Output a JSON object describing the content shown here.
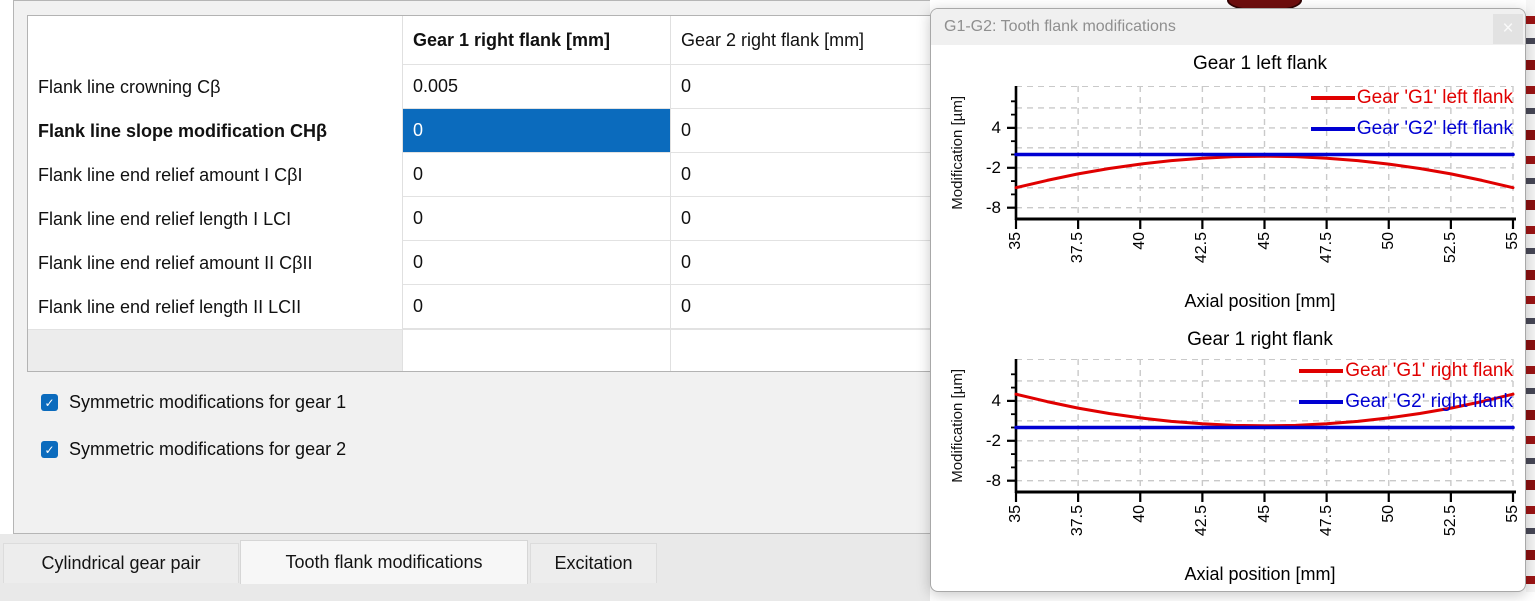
{
  "colors": {
    "accent": "#0b6bbd",
    "series_red": "#e00000",
    "series_blue": "#0000d2",
    "selected_text": "#ffffff"
  },
  "table": {
    "columns": [
      {
        "label": "",
        "bold": false
      },
      {
        "label": "Gear 1 right flank [mm]",
        "bold": true
      },
      {
        "label": "Gear 2 right flank [mm]",
        "bold": false
      }
    ],
    "rows": [
      {
        "label": "Flank line crowning Cβ",
        "bold": false,
        "values": [
          "0.005",
          "0"
        ]
      },
      {
        "label": "Flank line slope modification CHβ",
        "bold": true,
        "values": [
          "0",
          "0"
        ],
        "selected_value": 0
      },
      {
        "label": "Flank line end relief amount I CβI",
        "bold": false,
        "values": [
          "0",
          "0"
        ]
      },
      {
        "label": "Flank line end relief length I LCI",
        "bold": false,
        "values": [
          "0",
          "0"
        ]
      },
      {
        "label": "Flank line end relief amount II CβII",
        "bold": false,
        "values": [
          "0",
          "0"
        ]
      },
      {
        "label": "Flank line end relief length II LCII",
        "bold": false,
        "values": [
          "0",
          "0"
        ]
      }
    ]
  },
  "checkboxes": {
    "check_glyph": "✓",
    "items": [
      {
        "label": "Symmetric modifications for gear 1",
        "checked": true
      },
      {
        "label": "Symmetric modifications for gear 2",
        "checked": true
      }
    ]
  },
  "tabs": [
    {
      "label": "Cylindrical gear pair",
      "active": false
    },
    {
      "label": "Tooth flank modifications",
      "active": true
    },
    {
      "label": "Excitation",
      "active": false
    }
  ],
  "floating_window": {
    "title": "G1-G2: Tooth flank modifications",
    "close_glyph": "×"
  },
  "chart_data": [
    {
      "type": "line",
      "title": "Gear 1 left flank",
      "xlabel": "Axial position [mm]",
      "ylabel": "Modification [µm]",
      "xlim": [
        35,
        55
      ],
      "ylim": [
        -9.7,
        10.3
      ],
      "x_ticks": [
        35,
        37.5,
        40,
        42.5,
        45,
        47.5,
        50,
        52.5,
        55
      ],
      "y_major_ticks": [
        4,
        -2,
        -8
      ],
      "y_minor_ticks": [
        8,
        6,
        2,
        0,
        -4,
        -6
      ],
      "grid_values": [
        7,
        4,
        1,
        -2,
        -5,
        -8
      ],
      "grid": true,
      "legend_position": "top-right",
      "x": [
        35,
        36.25,
        37.5,
        38.75,
        40,
        41.25,
        42.5,
        43.75,
        45,
        46.25,
        47.5,
        48.75,
        50,
        51.25,
        52.5,
        53.75,
        55
      ],
      "series": [
        {
          "name": "Gear 'G1' left flank",
          "color": "#e00000",
          "width": 3,
          "values": [
            -5,
            -3.89,
            -2.92,
            -2.11,
            -1.44,
            -0.92,
            -0.55,
            -0.32,
            -0.25,
            -0.32,
            -0.55,
            -0.92,
            -1.44,
            -2.11,
            -2.92,
            -3.89,
            -5
          ]
        },
        {
          "name": "Gear 'G2' left flank",
          "color": "#0000d2",
          "width": 3.6,
          "values": [
            0,
            0,
            0,
            0,
            0,
            0,
            0,
            0,
            0,
            0,
            0,
            0,
            0,
            0,
            0,
            0,
            0
          ]
        }
      ]
    },
    {
      "type": "line",
      "title": "Gear 1 right flank",
      "xlabel": "Axial position [mm]",
      "ylabel": "Modification [µm]",
      "xlim": [
        35,
        55
      ],
      "ylim": [
        -9.7,
        10.3
      ],
      "x_ticks": [
        35,
        37.5,
        40,
        42.5,
        45,
        47.5,
        50,
        52.5,
        55
      ],
      "y_major_ticks": [
        4,
        -2,
        -8
      ],
      "y_minor_ticks": [
        8,
        6,
        2,
        0,
        -4,
        -6
      ],
      "grid_values": [
        7,
        4,
        1,
        -2,
        -5,
        -8
      ],
      "grid": true,
      "legend_position": "top-right",
      "x": [
        35,
        36.25,
        37.5,
        38.75,
        40,
        41.25,
        42.5,
        43.75,
        45,
        46.25,
        47.5,
        48.75,
        50,
        51.25,
        52.5,
        53.75,
        55
      ],
      "series": [
        {
          "name": "Gear 'G1' right flank",
          "color": "#e00000",
          "width": 3,
          "values": [
            5,
            3.89,
            2.92,
            2.11,
            1.44,
            0.92,
            0.55,
            0.32,
            0.25,
            0.32,
            0.55,
            0.92,
            1.44,
            2.11,
            2.92,
            3.89,
            5
          ]
        },
        {
          "name": "Gear 'G2' right flank",
          "color": "#0000d2",
          "width": 3.6,
          "values": [
            0,
            0,
            0,
            0,
            0,
            0,
            0,
            0,
            0,
            0,
            0,
            0,
            0,
            0,
            0,
            0,
            0
          ]
        }
      ]
    }
  ]
}
